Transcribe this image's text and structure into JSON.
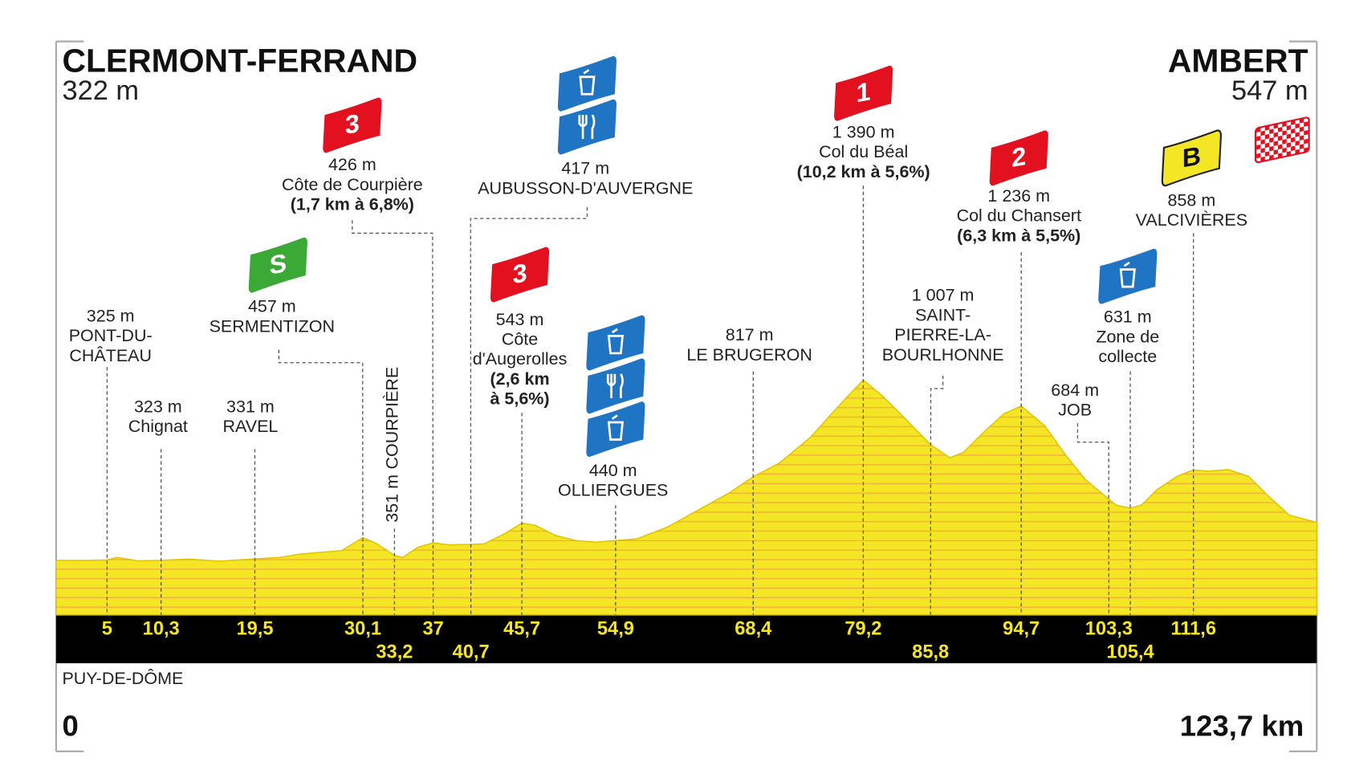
{
  "chart_data": {
    "type": "elevation-profile",
    "start": {
      "name": "CLERMONT-FERRAND",
      "elevation": "322 m"
    },
    "finish": {
      "name": "AMBERT",
      "elevation": "547 m"
    },
    "region": "PUY-DE-DÔME",
    "xlim": [
      0,
      123.7
    ],
    "xticks": [
      0,
      {
        "value": 123.7,
        "label": "123,7 km"
      }
    ],
    "ylim": [
      0,
      3000
    ],
    "color": "#f5e625",
    "x": [
      0,
      3,
      5,
      6,
      8,
      10.3,
      13,
      16,
      19.5,
      22,
      24,
      26,
      28,
      30.1,
      31.5,
      32.5,
      33.2,
      34,
      35.5,
      37,
      38.5,
      40.7,
      42,
      44,
      45.7,
      47,
      49,
      51,
      53,
      54.9,
      57,
      60,
      63,
      66,
      68.4,
      71,
      74,
      77,
      79.2,
      81,
      83,
      85.8,
      87.7,
      89,
      91,
      93,
      94.7,
      97,
      99,
      101,
      103.3,
      104,
      105.4,
      106.5,
      108,
      110,
      111.6,
      113,
      115,
      117,
      119,
      121,
      123.7
    ],
    "values": [
      322,
      322,
      325,
      340,
      320,
      323,
      330,
      318,
      331,
      340,
      360,
      370,
      380,
      457,
      420,
      380,
      351,
      340,
      400,
      426,
      415,
      417,
      420,
      480,
      543,
      530,
      470,
      440,
      430,
      440,
      450,
      520,
      620,
      720,
      817,
      900,
      1050,
      1250,
      1390,
      1300,
      1180,
      1007,
      930,
      960,
      1080,
      1190,
      1236,
      1120,
      950,
      800,
      684,
      650,
      631,
      650,
      740,
      820,
      858,
      850,
      860,
      820,
      700,
      590,
      547
    ],
    "points": [
      {
        "km": 5,
        "elevation": "325 m",
        "name": [
          "PONT-DU-",
          "CHÂTEAU"
        ]
      },
      {
        "km": {
          "value": 10.3,
          "label": "10,3"
        },
        "elevation": "323 m",
        "name": [
          "Chignat"
        ]
      },
      {
        "km": {
          "value": 19.5,
          "label": "19,5"
        },
        "elevation": "331 m",
        "name": [
          "RAVEL"
        ]
      },
      {
        "km": {
          "value": 30.1,
          "label": "30,1"
        },
        "elevation": "457 m",
        "name": [
          "SERMENTIZON"
        ],
        "marker": "sprint",
        "marker_label": "S"
      },
      {
        "km": {
          "value": 33.2,
          "label": "33,2"
        },
        "elevation": "351 m",
        "name": [
          "COURPIÈRE"
        ]
      },
      {
        "km": 37,
        "elevation": "426 m",
        "name": [
          "Côte de Courpière"
        ],
        "climb": [
          "(1,7 km à 6,8%)"
        ],
        "marker": "climb",
        "marker_label": "3"
      },
      {
        "km": {
          "value": 40.7,
          "label": "40,7"
        },
        "elevation": "417 m",
        "name": [
          "AUBUSSON-D'AUVERGNE"
        ],
        "icons": [
          "waste",
          "feed"
        ]
      },
      {
        "km": {
          "value": 45.7,
          "label": "45,7"
        },
        "elevation": "543 m",
        "name": [
          "Côte",
          "d'Augerolles"
        ],
        "climb": [
          "(2,6 km",
          "à 5,6%)"
        ],
        "marker": "climb",
        "marker_label": "3"
      },
      {
        "km": {
          "value": 54.9,
          "label": "54,9"
        },
        "elevation": "440 m",
        "name": [
          "OLLIERGUES"
        ],
        "icons": [
          "waste",
          "feed",
          "waste"
        ]
      },
      {
        "km": {
          "value": 68.4,
          "label": "68,4"
        },
        "elevation": "817 m",
        "name": [
          "LE BRUGERON"
        ]
      },
      {
        "km": {
          "value": 79.2,
          "label": "79,2"
        },
        "elevation": "1 390 m",
        "name": [
          "Col du Béal"
        ],
        "climb": [
          "(10,2 km à 5,6%)"
        ],
        "marker": "climb",
        "marker_label": "1"
      },
      {
        "km": {
          "value": 85.8,
          "label": "85,8"
        },
        "elevation": "1 007 m",
        "name": [
          "SAINT-",
          "PIERRE-LA-",
          "BOURLHONNE"
        ]
      },
      {
        "km": {
          "value": 94.7,
          "label": "94,7"
        },
        "elevation": "1 236 m",
        "name": [
          "Col du Chansert"
        ],
        "climb": [
          "(6,3 km à 5,5%)"
        ],
        "marker": "climb",
        "marker_label": "2"
      },
      {
        "km": {
          "value": 103.3,
          "label": "103,3"
        },
        "elevation": "684 m",
        "name": [
          "JOB"
        ]
      },
      {
        "km": {
          "value": 105.4,
          "label": "105,4"
        },
        "elevation": "631 m",
        "name": [
          "Zone de",
          "collecte"
        ],
        "icons": [
          "waste"
        ]
      },
      {
        "km": {
          "value": 111.6,
          "label": "111,6"
        },
        "elevation": "858 m",
        "name": [
          "VALCIVIÈRES"
        ],
        "marker": "bonus",
        "marker_label": "B"
      }
    ]
  }
}
